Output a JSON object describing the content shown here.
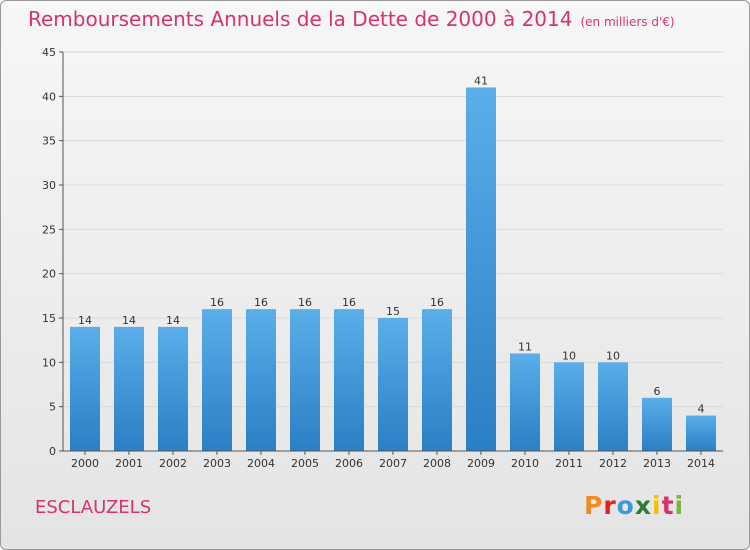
{
  "header": {
    "title": "Remboursements Annuels de la Dette de 2000 à 2014",
    "unit": "(en milliers d'€)"
  },
  "footer": {
    "commune": "ESCLAUZELS",
    "logo_text": "Proxiti",
    "logo_colors": [
      "#f08a24",
      "#e2231a",
      "#3a9ad9",
      "#2e7d32",
      "#f2c200",
      "#d6336c",
      "#7cb342"
    ]
  },
  "colors": {
    "title": "#d6336c",
    "bar_light": "#5aaeea",
    "bar_dark": "#2b7fc3",
    "grid": "#d9d9d9",
    "axis": "#555555"
  },
  "chart_data": {
    "type": "bar",
    "title": "Remboursements Annuels de la Dette de 2000 à 2014",
    "xlabel": "",
    "ylabel": "",
    "categories": [
      "2000",
      "2001",
      "2002",
      "2003",
      "2004",
      "2005",
      "2006",
      "2007",
      "2008",
      "2009",
      "2010",
      "2011",
      "2012",
      "2013",
      "2014"
    ],
    "values": [
      14,
      14,
      14,
      16,
      16,
      16,
      16,
      15,
      16,
      41,
      11,
      10,
      10,
      6,
      4
    ],
    "ylim": [
      0,
      45
    ],
    "yticks": [
      0,
      5,
      10,
      15,
      20,
      25,
      30,
      35,
      40,
      45
    ],
    "grid": true,
    "data_labels": true
  }
}
